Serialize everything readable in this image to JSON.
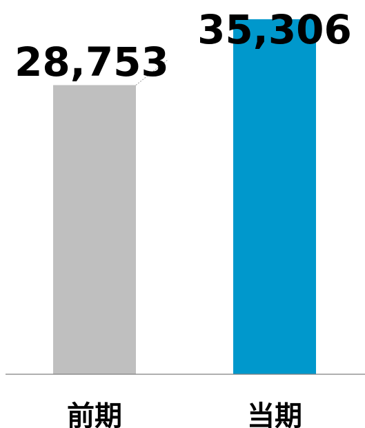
{
  "chart_data": {
    "type": "bar",
    "categories": [
      "前期",
      "当期"
    ],
    "values": [
      28753,
      35306
    ],
    "value_labels": [
      "28,753",
      "35,306"
    ],
    "colors": [
      "#bfbfbf",
      "#0098cc"
    ],
    "title": "",
    "xlabel": "",
    "ylabel": "",
    "ylim": [
      0,
      40000
    ],
    "grid": false,
    "legend": "none"
  }
}
